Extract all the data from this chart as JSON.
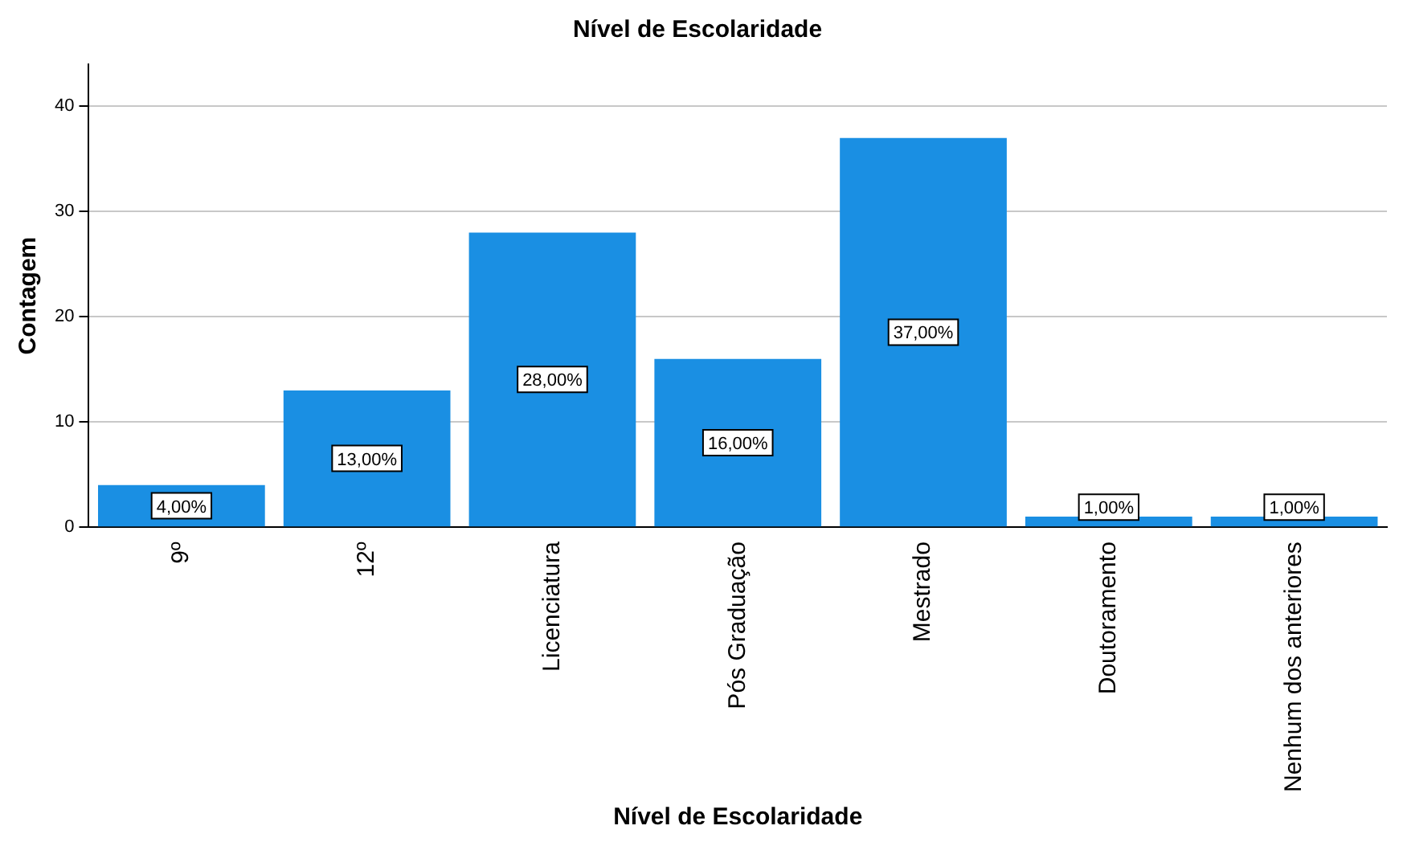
{
  "chart_data": {
    "type": "bar",
    "title": "Nível de Escolaridade",
    "xlabel": "Nível de Escolaridade",
    "ylabel": "Contagem",
    "categories": [
      "9º",
      "12º",
      "Licenciatura",
      "Pós Graduação",
      "Mestrado",
      "Doutoramento",
      "Nenhum dos anteriores"
    ],
    "values": [
      4,
      13,
      28,
      16,
      37,
      1,
      1
    ],
    "value_labels": [
      "4,00%",
      "13,00%",
      "28,00%",
      "16,00%",
      "37,00%",
      "1,00%",
      "1,00%"
    ],
    "color": "#1a8fe3",
    "ylim": [
      0,
      44
    ],
    "yticks": [
      0,
      10,
      20,
      30,
      40
    ],
    "grid": "y",
    "legend": false
  }
}
